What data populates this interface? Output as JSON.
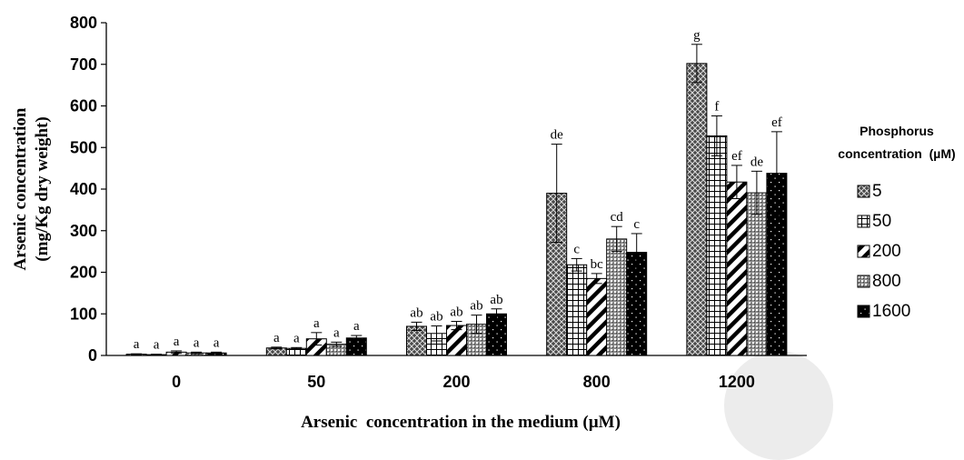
{
  "chart_data": {
    "type": "bar",
    "categories": [
      "0",
      "50",
      "200",
      "800",
      "1200"
    ],
    "xlabel": "Arsenic  concentration in the medium (µM)",
    "ylabel_lines": [
      "Arsenic concentration",
      "(mg/Kg dry weight)"
    ],
    "ylim": [
      0,
      800
    ],
    "yticks": [
      "0",
      "100",
      "200",
      "300",
      "400",
      "500",
      "600",
      "700",
      "800"
    ],
    "grid": false,
    "legend_title_lines": [
      "Phosphorus",
      "concentration  (µM)"
    ],
    "legend_position": "right",
    "series": [
      {
        "name": "5",
        "pattern": "crosshatch-dense",
        "values": [
          3,
          18,
          70,
          390,
          702
        ],
        "errors": [
          1,
          2,
          10,
          118,
          46
        ],
        "letters": [
          "a",
          "a",
          "ab",
          "de",
          "g"
        ]
      },
      {
        "name": "50",
        "pattern": "grid",
        "values": [
          2,
          17,
          53,
          218,
          528
        ],
        "errors": [
          1,
          2,
          18,
          15,
          48
        ],
        "letters": [
          "a",
          "a",
          "ab",
          "c",
          "f"
        ]
      },
      {
        "name": "200",
        "pattern": "diagonal-stripes",
        "values": [
          8,
          40,
          72,
          185,
          417
        ],
        "errors": [
          3,
          15,
          10,
          12,
          40
        ],
        "letters": [
          "a",
          "a",
          "ab",
          "bc",
          "ef"
        ]
      },
      {
        "name": "800",
        "pattern": "dotted-dense",
        "values": [
          6,
          27,
          75,
          280,
          391
        ],
        "errors": [
          2,
          5,
          22,
          30,
          52
        ],
        "letters": [
          "a",
          "a",
          "ab",
          "cd",
          "de"
        ]
      },
      {
        "name": "1600",
        "pattern": "black-dotted",
        "values": [
          6,
          42,
          100,
          248,
          438
        ],
        "errors": [
          2,
          6,
          12,
          45,
          100
        ],
        "letters": [
          "a",
          "a",
          "ab",
          "c",
          "ef"
        ]
      }
    ]
  }
}
